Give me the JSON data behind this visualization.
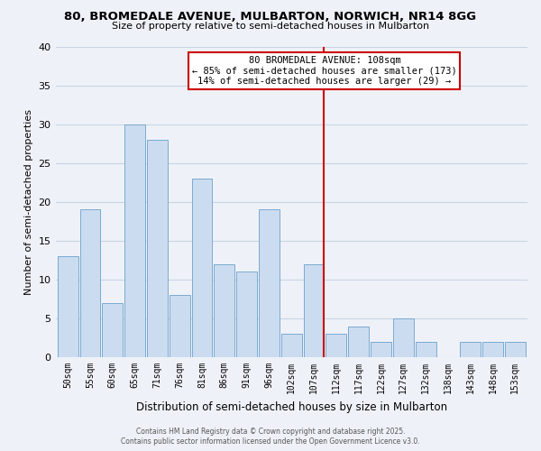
{
  "title1": "80, BROMEDALE AVENUE, MULBARTON, NORWICH, NR14 8GG",
  "title2": "Size of property relative to semi-detached houses in Mulbarton",
  "xlabel": "Distribution of semi-detached houses by size in Mulbarton",
  "ylabel": "Number of semi-detached properties",
  "bar_labels": [
    "50sqm",
    "55sqm",
    "60sqm",
    "65sqm",
    "71sqm",
    "76sqm",
    "81sqm",
    "86sqm",
    "91sqm",
    "96sqm",
    "102sqm",
    "107sqm",
    "112sqm",
    "117sqm",
    "122sqm",
    "127sqm",
    "132sqm",
    "138sqm",
    "143sqm",
    "148sqm",
    "153sqm"
  ],
  "bar_values": [
    13,
    19,
    7,
    30,
    28,
    8,
    23,
    12,
    11,
    19,
    3,
    12,
    3,
    4,
    2,
    5,
    2,
    0,
    2,
    2,
    2
  ],
  "bar_color": "#ccdcf0",
  "bar_edge_color": "#7aaad0",
  "grid_color": "#c8d4e4",
  "bg_color": "#eef2f8",
  "vline_color": "#cc0000",
  "annotation_title": "80 BROMEDALE AVENUE: 108sqm",
  "annotation_line1": "← 85% of semi-detached houses are smaller (173)",
  "annotation_line2": "14% of semi-detached houses are larger (29) →",
  "ylim": [
    0,
    40
  ],
  "yticks": [
    0,
    5,
    10,
    15,
    20,
    25,
    30,
    35,
    40
  ],
  "footer1": "Contains HM Land Registry data © Crown copyright and database right 2025.",
  "footer2": "Contains public sector information licensed under the Open Government Licence v3.0."
}
